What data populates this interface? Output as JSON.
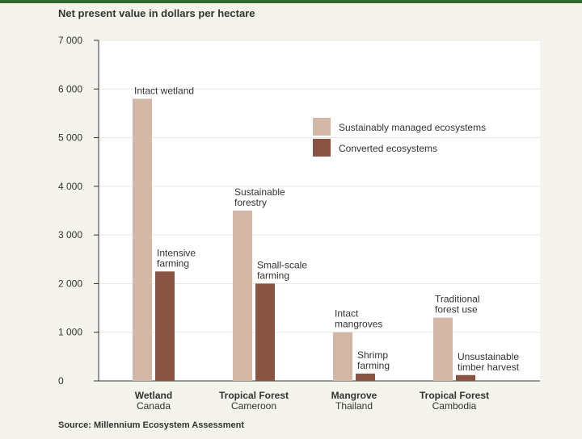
{
  "header": {
    "title": "Net present value in dollars per hectare"
  },
  "footer": {
    "source": "Source: Millennium Ecosystem Assessment"
  },
  "chart_data": {
    "type": "bar",
    "ylabel": "Net present value in dollars per hectare",
    "ylim": [
      0,
      7000
    ],
    "yticks": [
      "0",
      "1 000",
      "2 000",
      "3 000",
      "4 000",
      "5 000",
      "6 000",
      "7 000"
    ],
    "categories": [
      {
        "name": "Wetland",
        "place": "Canada"
      },
      {
        "name": "Tropical Forest",
        "place": "Cameroon"
      },
      {
        "name": "Mangrove",
        "place": "Thailand"
      },
      {
        "name": "Tropical Forest",
        "place": "Cambodia"
      }
    ],
    "series": [
      {
        "name": "Sustainably managed ecosystems",
        "color": "#d3b8a8",
        "values": [
          5800,
          3500,
          1000,
          1300
        ],
        "labels": [
          [
            "Intact wetland"
          ],
          [
            "Sustainable",
            "forestry"
          ],
          [
            "Intact",
            "mangroves"
          ],
          [
            "Traditional",
            "forest use"
          ]
        ]
      },
      {
        "name": "Converted ecosystems",
        "color": "#8a5444",
        "values": [
          2250,
          2000,
          150,
          120
        ],
        "labels": [
          [
            "Intensive",
            "farming"
          ],
          [
            "Small-scale",
            "farming"
          ],
          [
            "Shrimp",
            "farming"
          ],
          [
            "Unsustainable",
            "timber harvest"
          ]
        ]
      }
    ],
    "grid": true,
    "legend": "top-right"
  }
}
